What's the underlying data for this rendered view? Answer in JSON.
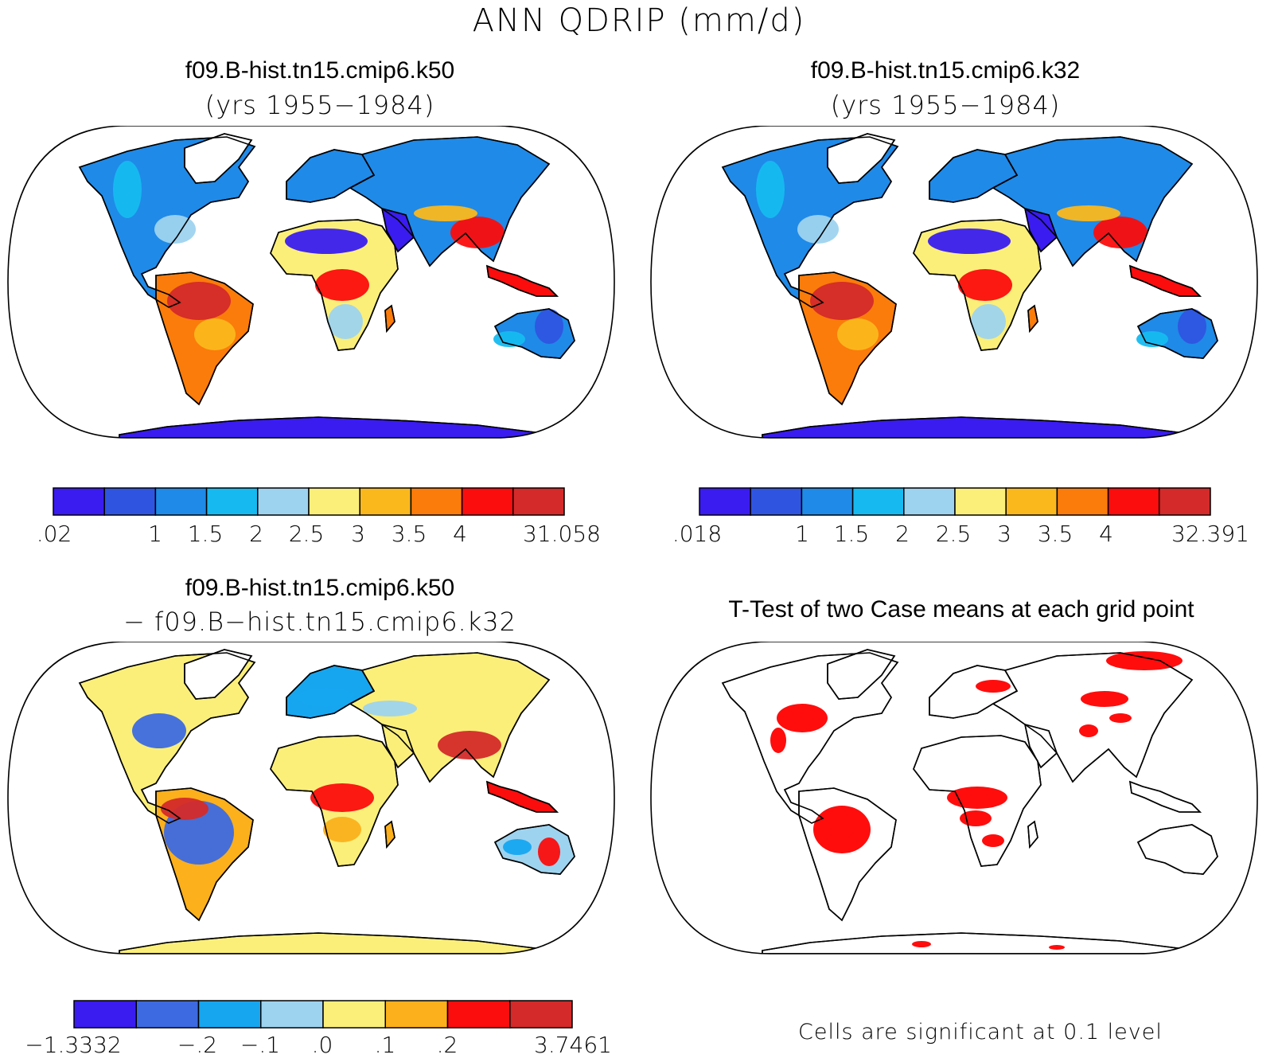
{
  "figure_title": "ANN QDRIP (mm/d)",
  "palette": [
    "#3a1cf0",
    "#2f55e0",
    "#1f8ae8",
    "#16baf0",
    "#9ed3ef",
    "#fbef7a",
    "#fbb81c",
    "#fb7c0a",
    "#fb0d0d",
    "#d42a2a"
  ],
  "diff_palette": [
    "#3a1cf0",
    "#3d6ae0",
    "#16a6f0",
    "#9ed3ef",
    "#fbef7a",
    "#fbb01c",
    "#fb0d0d",
    "#d42a2a"
  ],
  "panels": [
    {
      "id": "k50",
      "title_line1": "f09.B-hist.tn15.cmip6.k50",
      "title_line2": "(yrs 1955−1984)",
      "colorbar_labels": [
        ".02",
        "1",
        "1.5",
        "2",
        "2.5",
        "3",
        "3.5",
        "4",
        "31.058"
      ]
    },
    {
      "id": "k32",
      "title_line1": "f09.B-hist.tn15.cmip6.k32",
      "title_line2": "(yrs 1955−1984)",
      "colorbar_labels": [
        ".018",
        "1",
        "1.5",
        "2",
        "2.5",
        "3",
        "3.5",
        "4",
        "32.391"
      ]
    },
    {
      "id": "diff",
      "title_line1": "f09.B-hist.tn15.cmip6.k50",
      "title_line2": "− f09.B−hist.tn15.cmip6.k32",
      "colorbar_labels": [
        "−1.3332",
        "−.2",
        "−.1",
        ".0",
        ".1",
        ".2",
        "3.7461"
      ]
    },
    {
      "id": "ttest",
      "title_line1": "T-Test of two Case means at each grid point",
      "note": "Cells are significant at 0.1 level",
      "significance_color": "#ff0000"
    }
  ]
}
